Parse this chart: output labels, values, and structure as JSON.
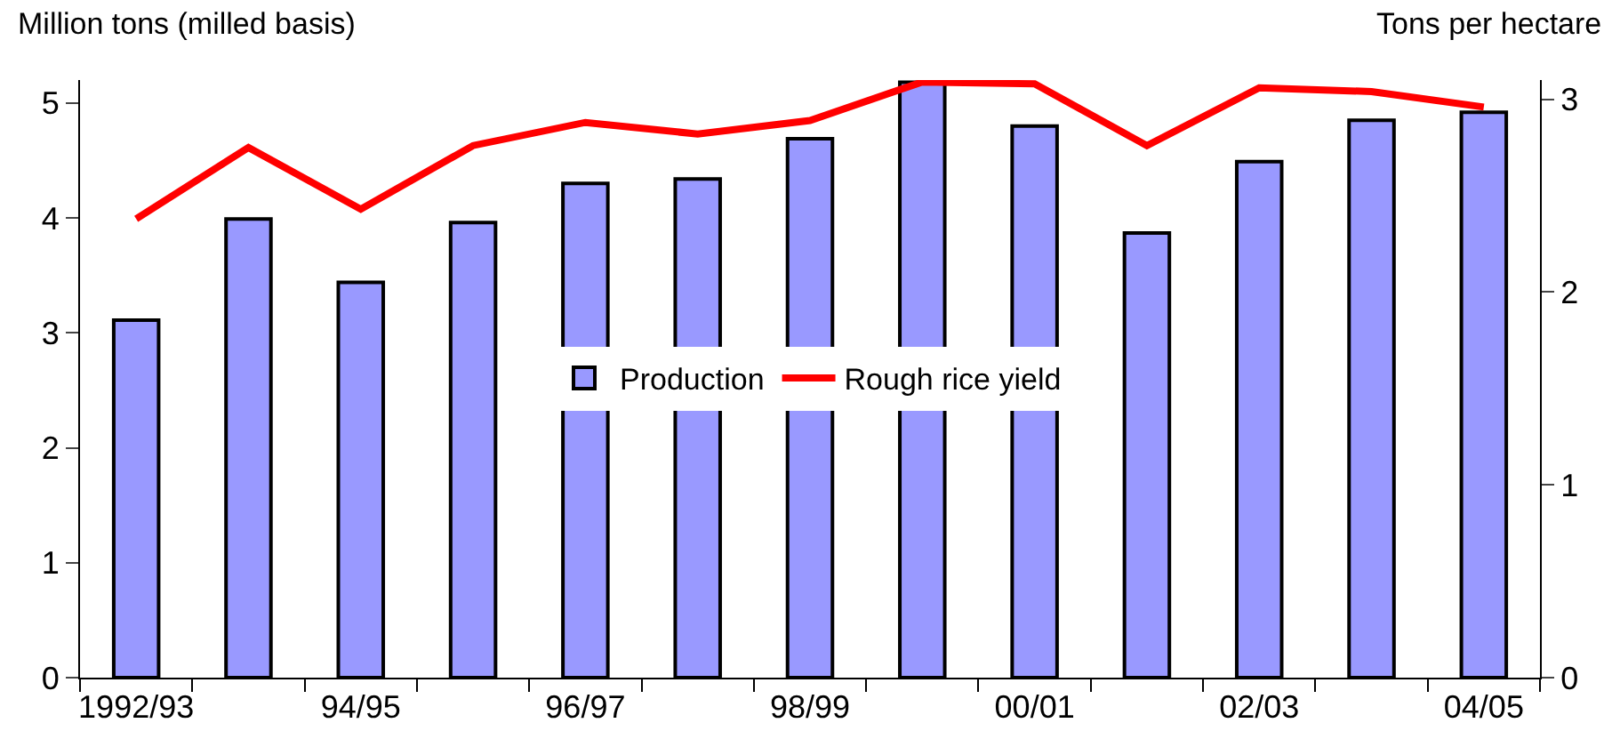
{
  "chart_data": {
    "type": "bar",
    "ylabel": "Million tons (milled basis)",
    "y2label": "Tons per hectare",
    "categories": [
      "1992/93",
      null,
      "94/95",
      null,
      "96/97",
      null,
      "98/99",
      null,
      "00/01",
      null,
      "02/03",
      null,
      "04/05"
    ],
    "series": [
      {
        "name": "Production",
        "color": "#9999ff",
        "values": [
          3.11,
          3.99,
          3.44,
          3.96,
          4.3,
          4.34,
          4.69,
          5.18,
          4.8,
          3.87,
          4.49,
          4.85,
          4.92
        ]
      },
      {
        "name": "Rough rice yield",
        "type": "line",
        "axis": "y2",
        "color": "#ff0000",
        "values": [
          2.38,
          2.75,
          2.43,
          2.76,
          2.88,
          2.82,
          2.89,
          3.09,
          3.08,
          2.76,
          3.06,
          3.04,
          2.96
        ]
      }
    ],
    "ylim": [
      0,
      5.2
    ],
    "yticks": [
      0,
      1,
      2,
      3,
      4,
      5
    ],
    "y2lim": [
      0,
      3.1
    ],
    "y2ticks": [
      0,
      1,
      2,
      3
    ],
    "grid": false,
    "legend": "center",
    "marker": "none",
    "line_style": "solid"
  }
}
